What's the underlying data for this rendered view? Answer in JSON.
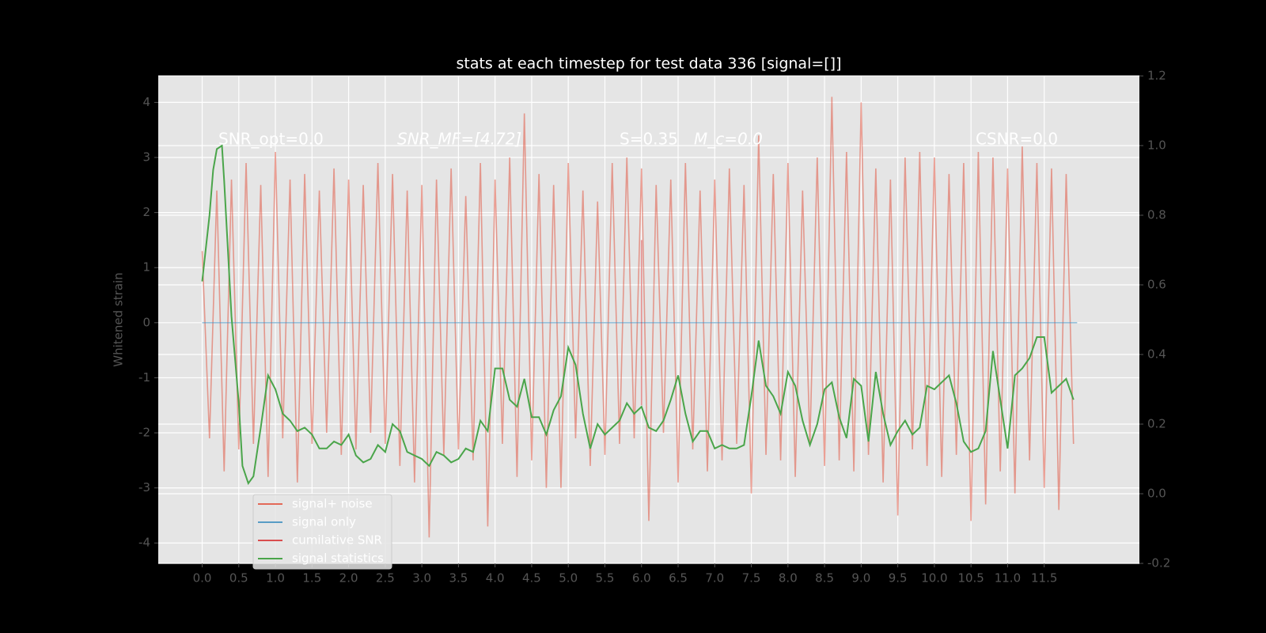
{
  "chart_data": {
    "type": "line",
    "title": "stats at each timestep for test data 336 [signal=[]]",
    "y_label": "Whitened strain",
    "annotations": [
      "SNR_opt=0.0",
      "SNR_MF=[4.72]",
      "S=0.35",
      "M_c=0.0",
      "CSNR=0.0"
    ],
    "xlim": [
      -0.6,
      12.8
    ],
    "ylim": [
      -4.37,
      4.48
    ],
    "y2lim": [
      -0.2,
      1.2
    ],
    "xticks": [
      {
        "value": 0,
        "label": "0.0"
      },
      0.5,
      {
        "value": 1,
        "label": "1.0"
      },
      1.5,
      {
        "value": 2,
        "label": "2.0"
      },
      2.5,
      {
        "value": 3,
        "label": "3.0"
      },
      3.5,
      {
        "value": 4,
        "label": "4.0"
      },
      4.5,
      {
        "value": 5,
        "label": "5.0"
      },
      5.5,
      {
        "value": 6,
        "label": "6.0"
      },
      6.5,
      {
        "value": 7,
        "label": "7.0"
      },
      7.5,
      {
        "value": 8,
        "label": "8.0"
      },
      8.5,
      {
        "value": 9,
        "label": "9.0"
      },
      9.5,
      {
        "value": 10,
        "label": "10.0"
      },
      10.5,
      {
        "value": 11,
        "label": "11.0"
      },
      11.5
    ],
    "yticks": [
      -4,
      -3,
      -2,
      -1,
      0,
      1,
      2,
      3,
      4
    ],
    "y2ticks": [
      -0.2,
      {
        "value": 0,
        "label": "0.0"
      },
      0.2,
      0.4,
      0.6,
      0.8,
      {
        "value": 1,
        "label": "1.0"
      },
      1.2
    ],
    "grid": true,
    "series": [
      {
        "name": "signal+ noise",
        "color": "#e24a33",
        "opacity": 0.5,
        "x": [
          0,
          0.1,
          0.2,
          0.3,
          0.4,
          0.5,
          0.6,
          0.7,
          0.8,
          0.9,
          1,
          1.1,
          1.2,
          1.3,
          1.4,
          1.5,
          1.6,
          1.7,
          1.8,
          1.9,
          2,
          2.1,
          2.2,
          2.3,
          2.4,
          2.5,
          2.6,
          2.7,
          2.8,
          2.9,
          3,
          3.1,
          3.2,
          3.3,
          3.4,
          3.5,
          3.6,
          3.7,
          3.8,
          3.9,
          4,
          4.1,
          4.2,
          4.3,
          4.4,
          4.5,
          4.6,
          4.7,
          4.8,
          4.9,
          5,
          5.1,
          5.2,
          5.3,
          5.4,
          5.5,
          5.6,
          5.7,
          5.8,
          5.9,
          6,
          6.1,
          6.2,
          6.3,
          6.4,
          6.5,
          6.6,
          6.7,
          6.8,
          6.9,
          7,
          7.1,
          7.2,
          7.3,
          7.4,
          7.5,
          7.6,
          7.7,
          7.8,
          7.9,
          8,
          8.1,
          8.2,
          8.3,
          8.4,
          8.5,
          8.6,
          8.7,
          8.8,
          8.9,
          9,
          9.1,
          9.2,
          9.3,
          9.4,
          9.5,
          9.6,
          9.7,
          9.8,
          9.9,
          10,
          10.1,
          10.2,
          10.3,
          10.4,
          10.5,
          10.6,
          10.7,
          10.8,
          10.9,
          11,
          11.1,
          11.2,
          11.3,
          11.4,
          11.5,
          11.6,
          11.7,
          11.8,
          11.9
        ],
        "values": [
          1.3,
          -2.1,
          2.4,
          -2.7,
          2.6,
          -2.3,
          2.9,
          -2.2,
          2.5,
          -2.8,
          3.1,
          -2.1,
          2.6,
          -2.9,
          2.7,
          -2.2,
          2.4,
          -2.0,
          2.8,
          -2.4,
          2.6,
          -2.3,
          2.5,
          -2.0,
          2.9,
          -2.2,
          2.7,
          -2.6,
          2.4,
          -2.9,
          2.5,
          -3.9,
          2.6,
          -2.4,
          2.8,
          -2.3,
          2.3,
          -2.5,
          2.9,
          -3.7,
          2.6,
          -2.2,
          3.0,
          -2.8,
          3.8,
          -2.5,
          2.7,
          -3.0,
          2.5,
          -3.0,
          2.9,
          -2.1,
          2.4,
          -2.6,
          2.2,
          -2.4,
          2.9,
          -2.2,
          3.0,
          -2.1,
          2.8,
          -3.6,
          2.5,
          -2.0,
          2.6,
          -2.9,
          2.9,
          -2.3,
          2.4,
          -2.7,
          2.6,
          -2.5,
          2.8,
          -2.2,
          2.5,
          -3.1,
          3.4,
          -2.4,
          2.7,
          -2.5,
          2.9,
          -2.8,
          2.4,
          -2.2,
          3.0,
          -2.6,
          4.1,
          -2.5,
          3.1,
          -2.7,
          4.0,
          -2.4,
          2.8,
          -2.9,
          2.6,
          -3.5,
          3.0,
          -2.3,
          3.1,
          -2.6,
          3.0,
          -2.8,
          2.7,
          -2.4,
          2.9,
          -3.6,
          3.1,
          -3.3,
          3.0,
          -2.7,
          2.8,
          -3.1,
          3.2,
          -2.5,
          2.9,
          -3.0,
          2.8,
          -3.4,
          2.7,
          -2.2
        ]
      },
      {
        "name": "signal only",
        "color": "#348abd",
        "opacity": 0.5,
        "x": [
          0,
          11.95
        ],
        "values": [
          0,
          0
        ]
      },
      {
        "name": "cumilative SNR",
        "color": "#d62728",
        "opacity": 0.5,
        "x": [
          6,
          6
        ],
        "values": [
          1.5,
          -1.5
        ]
      },
      {
        "name": "signal statistics",
        "color": "#4aa54a",
        "opacity": 1,
        "axis": "y2",
        "x": [
          0,
          0.1,
          0.15,
          0.2,
          0.27,
          0.3,
          0.4,
          0.5,
          0.55,
          0.63,
          0.7,
          0.8,
          0.9,
          1,
          1.1,
          1.2,
          1.3,
          1.4,
          1.5,
          1.6,
          1.7,
          1.8,
          1.9,
          2,
          2.1,
          2.2,
          2.3,
          2.4,
          2.5,
          2.6,
          2.7,
          2.8,
          2.9,
          3,
          3.1,
          3.2,
          3.3,
          3.4,
          3.5,
          3.6,
          3.7,
          3.8,
          3.9,
          4,
          4.1,
          4.2,
          4.3,
          4.4,
          4.5,
          4.6,
          4.7,
          4.8,
          4.9,
          5,
          5.1,
          5.2,
          5.3,
          5.4,
          5.5,
          5.6,
          5.7,
          5.8,
          5.9,
          6,
          6.1,
          6.2,
          6.3,
          6.4,
          6.5,
          6.6,
          6.7,
          6.8,
          6.9,
          7,
          7.1,
          7.2,
          7.3,
          7.4,
          7.5,
          7.6,
          7.7,
          7.8,
          7.9,
          8,
          8.1,
          8.2,
          8.3,
          8.4,
          8.5,
          8.6,
          8.7,
          8.8,
          8.9,
          9,
          9.1,
          9.2,
          9.3,
          9.4,
          9.5,
          9.6,
          9.7,
          9.8,
          9.9,
          10,
          10.1,
          10.2,
          10.3,
          10.4,
          10.5,
          10.6,
          10.7,
          10.8,
          10.9,
          11,
          11.1,
          11.2,
          11.3,
          11.4,
          11.5,
          11.6,
          11.7,
          11.8,
          11.9
        ],
        "values": [
          0.61,
          0.8,
          0.93,
          0.99,
          1.0,
          0.9,
          0.51,
          0.26,
          0.08,
          0.03,
          0.05,
          0.19,
          0.34,
          0.3,
          0.23,
          0.21,
          0.18,
          0.19,
          0.17,
          0.13,
          0.13,
          0.15,
          0.14,
          0.17,
          0.11,
          0.09,
          0.1,
          0.14,
          0.12,
          0.2,
          0.18,
          0.12,
          0.11,
          0.1,
          0.08,
          0.12,
          0.11,
          0.09,
          0.1,
          0.13,
          0.12,
          0.21,
          0.18,
          0.36,
          0.36,
          0.27,
          0.25,
          0.33,
          0.22,
          0.22,
          0.17,
          0.24,
          0.28,
          0.42,
          0.37,
          0.23,
          0.13,
          0.2,
          0.17,
          0.19,
          0.21,
          0.26,
          0.23,
          0.25,
          0.19,
          0.18,
          0.21,
          0.27,
          0.34,
          0.23,
          0.15,
          0.18,
          0.18,
          0.13,
          0.14,
          0.13,
          0.13,
          0.14,
          0.28,
          0.44,
          0.31,
          0.28,
          0.23,
          0.35,
          0.31,
          0.21,
          0.14,
          0.2,
          0.3,
          0.32,
          0.22,
          0.16,
          0.33,
          0.31,
          0.15,
          0.35,
          0.23,
          0.14,
          0.18,
          0.21,
          0.17,
          0.19,
          0.31,
          0.3,
          0.32,
          0.34,
          0.26,
          0.15,
          0.12,
          0.13,
          0.18,
          0.41,
          0.27,
          0.13,
          0.34,
          0.36,
          0.39,
          0.45,
          0.45,
          0.29,
          0.31,
          0.33,
          0.27
        ]
      }
    ]
  }
}
